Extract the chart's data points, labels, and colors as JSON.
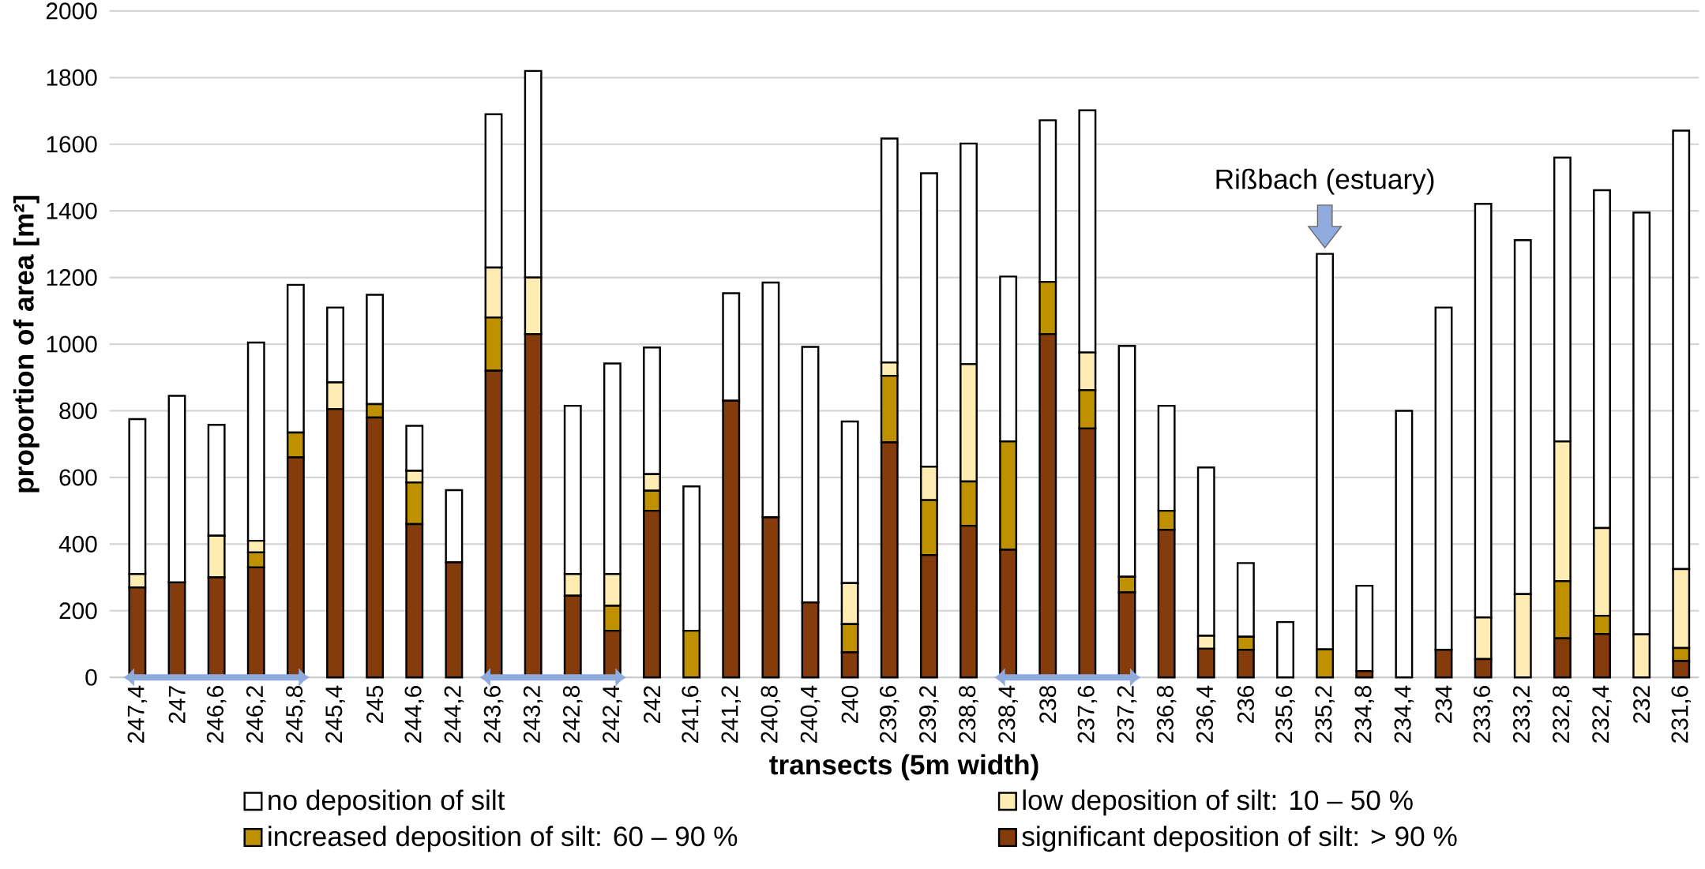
{
  "chart_data": {
    "type": "bar",
    "stacked": true,
    "xlabel": "transects (5m width)",
    "ylabel": "proportion of area [m²]",
    "categories": [
      "247,4",
      "247",
      "246,6",
      "246,2",
      "245,8",
      "245,4",
      "245",
      "244,6",
      "244,2",
      "243,6",
      "243,2",
      "242,8",
      "242,4",
      "242",
      "241,6",
      "241,2",
      "240,8",
      "240,4",
      "240",
      "239,6",
      "239,2",
      "238,8",
      "238,4",
      "238",
      "237,6",
      "237,2",
      "236,8",
      "236,4",
      "236",
      "235,6",
      "235,2",
      "234,8",
      "234,4",
      "234",
      "233,6",
      "233,2",
      "232,8",
      "232,4",
      "232",
      "231,6"
    ],
    "series": [
      {
        "name": "significant deposition of silt: > 90 %",
        "color": "#843c0c",
        "values": [
          270,
          285,
          300,
          330,
          660,
          805,
          780,
          460,
          345,
          920,
          1030,
          245,
          140,
          500,
          0,
          830,
          480,
          225,
          75,
          705,
          367,
          455,
          383,
          1030,
          747,
          255,
          443,
          86,
          83,
          0,
          0,
          19,
          0,
          83,
          55,
          0,
          117,
          130,
          0,
          49
        ]
      },
      {
        "name": "increased deposition of silt: 60 – 90 %",
        "color": "#bf9000",
        "values": [
          0,
          0,
          0,
          45,
          75,
          0,
          40,
          125,
          0,
          160,
          0,
          0,
          75,
          60,
          140,
          0,
          0,
          0,
          85,
          200,
          165,
          133,
          325,
          157,
          115,
          47,
          57,
          0,
          39,
          0,
          84,
          0,
          0,
          0,
          0,
          0,
          172,
          55,
          0,
          39
        ]
      },
      {
        "name": "low deposition of silt: 10 – 50 %",
        "color": "#ffecb3",
        "values": [
          40,
          0,
          125,
          35,
          0,
          80,
          0,
          35,
          0,
          150,
          170,
          65,
          95,
          50,
          0,
          0,
          0,
          0,
          123,
          40,
          100,
          352,
          0,
          0,
          113,
          0,
          0,
          39,
          0,
          0,
          0,
          0,
          0,
          0,
          125,
          250,
          419,
          263,
          129,
          237
        ]
      },
      {
        "name": "no deposition of silt",
        "color": "#ffffff",
        "values": [
          465,
          560,
          333,
          595,
          443,
          225,
          328,
          135,
          217,
          460,
          620,
          505,
          632,
          380,
          433,
          323,
          705,
          767,
          485,
          672,
          881,
          662,
          495,
          485,
          727,
          693,
          315,
          505,
          221,
          166,
          1187,
          256,
          800,
          1027,
          1241,
          1062,
          852,
          1014,
          1266,
          1316
        ]
      }
    ],
    "ylim": [
      0,
      2000
    ],
    "yticks": [
      0,
      200,
      400,
      600,
      800,
      1000,
      1200,
      1400,
      1600,
      1800,
      2000
    ],
    "grid": "y",
    "legend": "bottom",
    "annotations": [
      {
        "text": "Rißbach (estuary)",
        "x": "235,2",
        "y": 1271
      }
    ]
  }
}
